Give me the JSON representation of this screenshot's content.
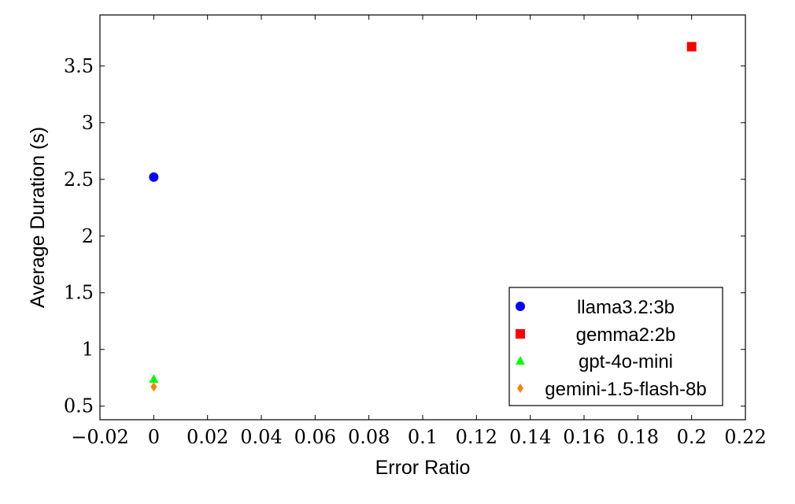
{
  "chart_data": {
    "type": "scatter",
    "title": "",
    "xlabel": "Error Ratio",
    "ylabel": "Average Duration (s)",
    "xlim": [
      -0.02,
      0.22
    ],
    "ylim": [
      0.38,
      3.95
    ],
    "x_ticks": [
      -0.02,
      0,
      0.02,
      0.04,
      0.06,
      0.08,
      0.1,
      0.12,
      0.14,
      0.16,
      0.18,
      0.2,
      0.22
    ],
    "x_tick_labels": [
      "−0.02",
      "0",
      "0.02",
      "0.04",
      "0.06",
      "0.08",
      "0.1",
      "0.12",
      "0.14",
      "0.16",
      "0.18",
      "0.2",
      "0.22"
    ],
    "y_ticks": [
      0.5,
      1,
      1.5,
      2,
      2.5,
      3,
      3.5
    ],
    "y_tick_labels": [
      "0.5",
      "1",
      "1.5",
      "2",
      "2.5",
      "3",
      "3.5"
    ],
    "grid": false,
    "legend_position": "bottom-right",
    "series": [
      {
        "name": "llama3.2:3b",
        "marker": "circle",
        "color": "#0000ff",
        "points": [
          {
            "x": 0,
            "y": 2.52
          }
        ]
      },
      {
        "name": "gemma2:2b",
        "marker": "square",
        "color": "#ff0000",
        "points": [
          {
            "x": 0.2,
            "y": 3.67
          }
        ]
      },
      {
        "name": "gpt-4o-mini",
        "marker": "triangle",
        "color": "#00ff00",
        "points": [
          {
            "x": 0,
            "y": 0.74
          }
        ]
      },
      {
        "name": "gemini-1.5-flash-8b",
        "marker": "diamond",
        "color": "#ff8000",
        "points": [
          {
            "x": 0,
            "y": 0.67
          }
        ]
      }
    ]
  }
}
